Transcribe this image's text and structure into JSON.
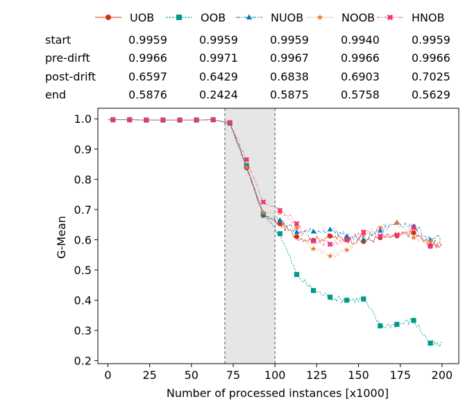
{
  "chart_data": {
    "type": "line",
    "xlabel": "Number of processed instances [x1000]",
    "ylabel": "G-Mean",
    "xlim": [
      -6,
      210
    ],
    "ylim": [
      0.19,
      1.035
    ],
    "xticks": [
      0,
      25,
      50,
      75,
      100,
      125,
      150,
      175,
      200
    ],
    "yticks": [
      0.2,
      0.3,
      0.4,
      0.5,
      0.6,
      0.7,
      0.8,
      0.9,
      1.0
    ],
    "xtick_labels": [
      "0",
      "25",
      "50",
      "75",
      "100",
      "125",
      "150",
      "175",
      "200"
    ],
    "ytick_labels": [
      "0.2",
      "0.3",
      "0.4",
      "0.5",
      "0.6",
      "0.7",
      "0.8",
      "0.9",
      "1.0"
    ],
    "drift_region": [
      70,
      100
    ],
    "marker_x": [
      3,
      13,
      23,
      33,
      43,
      53,
      63,
      73,
      83,
      93,
      103,
      113,
      123,
      133,
      143,
      153,
      163,
      173,
      183,
      193
    ],
    "series": [
      {
        "name": "UOB",
        "color": "#cc3311",
        "marker": "circle",
        "dash": "none",
        "values": [
          0.997,
          0.997,
          0.996,
          0.996,
          0.996,
          0.996,
          0.997,
          0.986,
          0.838,
          0.68,
          0.653,
          0.61,
          0.598,
          0.612,
          0.6,
          0.594,
          0.607,
          0.613,
          0.623,
          0.58
        ]
      },
      {
        "name": "OOB",
        "color": "#009988",
        "marker": "square",
        "dash": "3,1.5",
        "values": [
          0.997,
          0.997,
          0.996,
          0.996,
          0.996,
          0.996,
          0.997,
          0.986,
          0.845,
          0.685,
          0.62,
          0.485,
          0.432,
          0.41,
          0.4,
          0.404,
          0.315,
          0.32,
          0.333,
          0.258
        ]
      },
      {
        "name": "NUOB",
        "color": "#0077bb",
        "marker": "triangle",
        "dash": "6,2,1.5,2",
        "values": [
          0.997,
          0.997,
          0.996,
          0.996,
          0.996,
          0.996,
          0.997,
          0.986,
          0.843,
          0.685,
          0.665,
          0.625,
          0.627,
          0.634,
          0.612,
          0.6,
          0.63,
          0.657,
          0.645,
          0.6
        ]
      },
      {
        "name": "NOOB",
        "color": "#ee7733",
        "marker": "star",
        "dash": "1.2,1.8",
        "values": [
          0.997,
          0.997,
          0.996,
          0.996,
          0.996,
          0.996,
          0.997,
          0.986,
          0.84,
          0.69,
          0.69,
          0.64,
          0.57,
          0.546,
          0.566,
          0.615,
          0.64,
          0.655,
          0.607,
          0.595
        ]
      },
      {
        "name": "HNOB",
        "color": "#ee3377",
        "marker": "x",
        "dash": "4,1.5,1,1.5,1,1.5",
        "values": [
          0.997,
          0.997,
          0.996,
          0.996,
          0.996,
          0.996,
          0.997,
          0.988,
          0.865,
          0.725,
          0.697,
          0.653,
          0.595,
          0.585,
          0.6,
          0.625,
          0.612,
          0.615,
          0.64,
          0.578
        ]
      }
    ]
  },
  "table": {
    "row_labels": [
      "start",
      "pre-dirft",
      "post-drift",
      "end"
    ],
    "columns": [
      {
        "name": "UOB",
        "values": [
          "0.9959",
          "0.9966",
          "0.6597",
          "0.5876"
        ]
      },
      {
        "name": "OOB",
        "values": [
          "0.9959",
          "0.9971",
          "0.6429",
          "0.2424"
        ]
      },
      {
        "name": "NUOB",
        "values": [
          "0.9959",
          "0.9967",
          "0.6838",
          "0.5875"
        ]
      },
      {
        "name": "NOOB",
        "values": [
          "0.9940",
          "0.9966",
          "0.6903",
          "0.5758"
        ]
      },
      {
        "name": "HNOB",
        "values": [
          "0.9959",
          "0.9966",
          "0.7025",
          "0.5629"
        ]
      }
    ]
  }
}
